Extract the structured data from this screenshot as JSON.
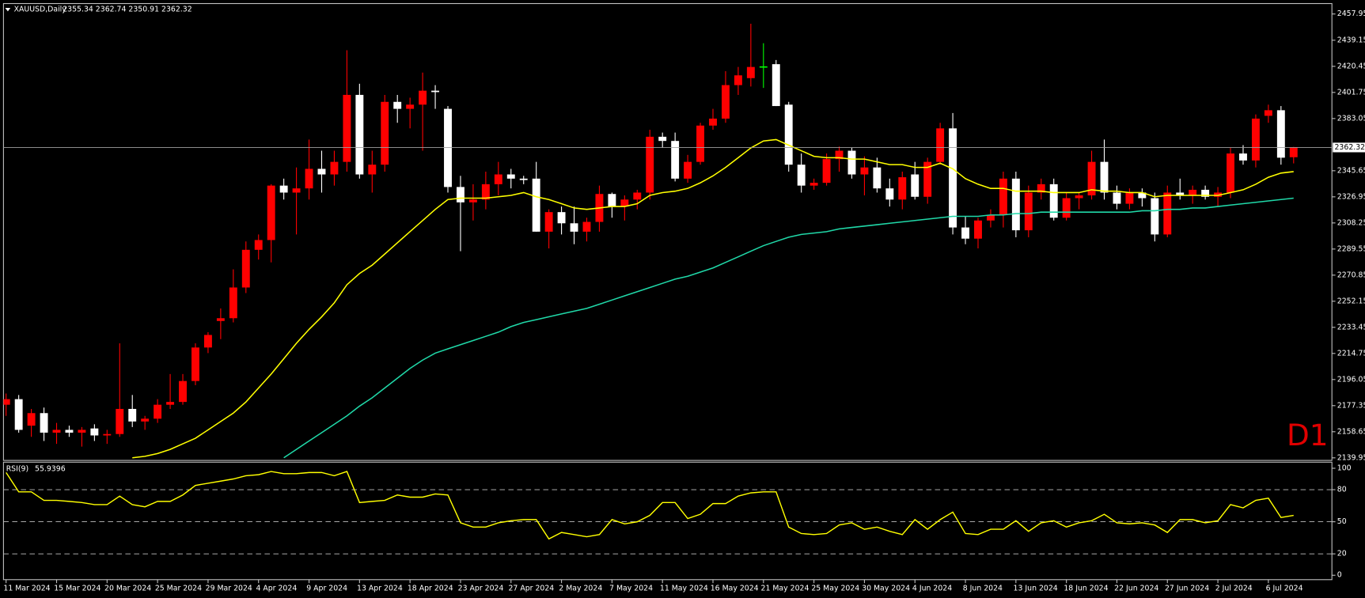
{
  "chart_data": [
    {
      "type": "candlestick",
      "title": "XAUUSD,Daily",
      "subtitle": "2355.34 2362.74 2350.91 2362.32",
      "annotation": "D1",
      "categories": [
        "11 Mar 2024",
        null,
        null,
        null,
        "15 Mar 2024",
        null,
        null,
        null,
        "20 Mar 2024",
        null,
        null,
        null,
        "25 Mar 2024",
        null,
        null,
        null,
        "29 Mar 2024",
        null,
        null,
        null,
        "4 Apr 2024",
        null,
        null,
        null,
        "9 Apr 2024",
        null,
        null,
        null,
        "13 Apr 2024",
        null,
        null,
        null,
        "18 Apr 2024",
        null,
        null,
        null,
        "23 Apr 2024",
        null,
        null,
        null,
        "27 Apr 2024",
        null,
        null,
        null,
        "2 May 2024",
        null,
        null,
        null,
        "7 May 2024",
        null,
        null,
        null,
        "11 May 2024",
        null,
        null,
        null,
        "16 May 2024",
        null,
        null,
        null,
        "21 May 2024",
        null,
        null,
        null,
        "25 May 2024",
        null,
        null,
        null,
        "30 May 2024",
        null,
        null,
        null,
        "4 Jun 2024",
        null,
        null,
        null,
        "8 Jun 2024",
        null,
        null,
        null,
        "13 Jun 2024",
        null,
        null,
        null,
        "18 Jun 2024",
        null,
        null,
        null,
        "22 Jun 2024",
        null,
        null,
        null,
        "27 Jun 2024",
        null,
        null,
        null,
        "2 Jul 2024",
        null,
        null,
        null,
        "6 Jul 2024",
        null,
        null
      ],
      "open": [
        2178,
        2182,
        2163,
        2172,
        2158,
        2160,
        2158,
        2161,
        2156,
        2157,
        2175,
        2166,
        2168,
        2178,
        2180,
        2195,
        2219,
        2238,
        2240,
        2262,
        2289,
        2296,
        2335,
        2330,
        2333,
        2347,
        2343,
        2352,
        2400,
        2343,
        2350,
        2395,
        2390,
        2393,
        2403,
        2390,
        2334,
        2323,
        2325,
        2336,
        2343,
        2340,
        2340,
        2302,
        2316,
        2308,
        2302,
        2309,
        2329,
        2320,
        2325,
        2330,
        2370,
        2367,
        2340,
        2352,
        2378,
        2383,
        2407,
        2412,
        2420,
        2422,
        2393,
        2350,
        2335,
        2337,
        2354,
        2360,
        2343,
        2348,
        2333,
        2325,
        2343,
        2327,
        2352,
        2376,
        2305,
        2297,
        2310,
        2314,
        2340,
        2303,
        2330,
        2336,
        2312,
        2326,
        2328,
        2352,
        2330,
        2322,
        2330,
        2326,
        2300,
        2330,
        2328,
        2332,
        2327,
        2330,
        2358,
        2353,
        2385,
        2389,
        2355.34
      ],
      "high": [
        2186,
        2185,
        2175,
        2176,
        2165,
        2163,
        2162,
        2164,
        2160,
        2222,
        2185,
        2170,
        2182,
        2200,
        2200,
        2222,
        2230,
        2247,
        2275,
        2295,
        2300,
        2336,
        2340,
        2348,
        2368,
        2360,
        2360,
        2432,
        2408,
        2360,
        2400,
        2400,
        2398,
        2416,
        2407,
        2392,
        2342,
        2336,
        2345,
        2352,
        2347,
        2342,
        2352,
        2318,
        2320,
        2320,
        2312,
        2335,
        2330,
        2328,
        2332,
        2375,
        2373,
        2373,
        2357,
        2380,
        2390,
        2417,
        2420,
        2451,
        2437,
        2425,
        2395,
        2358,
        2340,
        2358,
        2363,
        2362,
        2356,
        2355,
        2340,
        2345,
        2352,
        2355,
        2380,
        2387,
        2313,
        2312,
        2318,
        2345,
        2345,
        2335,
        2340,
        2340,
        2330,
        2330,
        2360,
        2368,
        2335,
        2333,
        2333,
        2330,
        2335,
        2340,
        2335,
        2335,
        2334,
        2362,
        2364,
        2386,
        2393,
        2392,
        2362.74
      ],
      "low": [
        2170,
        2158,
        2155,
        2152,
        2150,
        2155,
        2148,
        2152,
        2150,
        2155,
        2162,
        2160,
        2165,
        2175,
        2178,
        2192,
        2215,
        2225,
        2237,
        2258,
        2282,
        2280,
        2325,
        2300,
        2325,
        2330,
        2335,
        2345,
        2340,
        2330,
        2345,
        2380,
        2376,
        2360,
        2390,
        2330,
        2288,
        2310,
        2318,
        2328,
        2333,
        2336,
        2302,
        2290,
        2300,
        2293,
        2295,
        2302,
        2312,
        2310,
        2318,
        2325,
        2362,
        2338,
        2337,
        2350,
        2375,
        2380,
        2400,
        2406,
        2405,
        2392,
        2345,
        2330,
        2332,
        2335,
        2345,
        2340,
        2328,
        2330,
        2320,
        2318,
        2325,
        2322,
        2350,
        2300,
        2293,
        2290,
        2305,
        2305,
        2298,
        2298,
        2325,
        2310,
        2310,
        2318,
        2325,
        2325,
        2318,
        2318,
        2320,
        2295,
        2298,
        2325,
        2322,
        2325,
        2320,
        2326,
        2350,
        2348,
        2380,
        2350,
        2350.91
      ],
      "close": [
        2182,
        2160,
        2172,
        2158,
        2160,
        2158,
        2160,
        2156,
        2157,
        2175,
        2166,
        2168,
        2178,
        2180,
        2195,
        2219,
        2228,
        2240,
        2262,
        2289,
        2296,
        2335,
        2330,
        2333,
        2347,
        2343,
        2352,
        2400,
        2343,
        2350,
        2395,
        2390,
        2393,
        2403,
        2402,
        2334,
        2323,
        2325,
        2336,
        2343,
        2340,
        2339,
        2302,
        2316,
        2308,
        2302,
        2309,
        2329,
        2320,
        2325,
        2330,
        2370,
        2367,
        2340,
        2352,
        2378,
        2383,
        2407,
        2414,
        2420,
        2420,
        2392,
        2350,
        2335,
        2337,
        2354,
        2360,
        2343,
        2348,
        2333,
        2325,
        2341,
        2327,
        2352,
        2376,
        2305,
        2297,
        2310,
        2314,
        2340,
        2303,
        2330,
        2336,
        2312,
        2326,
        2328,
        2352,
        2330,
        2322,
        2330,
        2326,
        2300,
        2330,
        2328,
        2332,
        2327,
        2330,
        2358,
        2353,
        2383,
        2389,
        2355,
        2362.32
      ],
      "up_color": "#ff0000",
      "down_color": "#ffffff",
      "doji_color": "#00ff00",
      "series": [
        {
          "color": "#ffff00",
          "values": [
            null,
            null,
            null,
            null,
            null,
            null,
            null,
            null,
            null,
            null,
            2140,
            2141,
            2143,
            2146,
            2150,
            2154,
            2160,
            2166,
            2172,
            2180,
            2190,
            2200,
            2211,
            2222,
            2232,
            2241,
            2251,
            2264,
            2272,
            2278,
            2286,
            2294,
            2302,
            2310,
            2318,
            2325,
            2326,
            2326,
            2326,
            2327,
            2328,
            2330,
            2327,
            2325,
            2322,
            2319,
            2318,
            2319,
            2320,
            2320,
            2322,
            2328,
            2330,
            2331,
            2333,
            2337,
            2342,
            2348,
            2355,
            2362,
            2367,
            2368,
            2364,
            2360,
            2356,
            2355,
            2355,
            2354,
            2354,
            2352,
            2350,
            2350,
            2348,
            2348,
            2351,
            2347,
            2340,
            2336,
            2333,
            2333,
            2331,
            2331,
            2331,
            2330,
            2330,
            2330,
            2332,
            2331,
            2331,
            2330,
            2330,
            2327,
            2328,
            2328,
            2328,
            2328,
            2328,
            2330,
            2332,
            2336,
            2341,
            2344,
            2345
          ]
        },
        {
          "color": "#20d8a8",
          "values": [
            null,
            null,
            null,
            null,
            null,
            null,
            null,
            null,
            null,
            null,
            null,
            null,
            null,
            null,
            null,
            null,
            null,
            null,
            null,
            null,
            null,
            null,
            2140,
            2146,
            2152,
            2158,
            2164,
            2170,
            2177,
            2183,
            2190,
            2197,
            2204,
            2210,
            2215,
            2218,
            2221,
            2224,
            2227,
            2230,
            2234,
            2237,
            2239,
            2241,
            2243,
            2245,
            2247,
            2250,
            2253,
            2256,
            2259,
            2262,
            2265,
            2268,
            2270,
            2273,
            2276,
            2280,
            2284,
            2288,
            2292,
            2295,
            2298,
            2300,
            2301,
            2302,
            2304,
            2305,
            2306,
            2307,
            2308,
            2309,
            2310,
            2311,
            2312,
            2313,
            2313,
            2313,
            2314,
            2314,
            2315,
            2315,
            2316,
            2316,
            2316,
            2316,
            2316,
            2316,
            2316,
            2316,
            2317,
            2317,
            2318,
            2318,
            2319,
            2319,
            2320,
            2321,
            2322,
            2323,
            2324,
            2325,
            2326
          ]
        }
      ],
      "current_price": 2362.32,
      "ylim": [
        2138.1,
        2464.8
      ],
      "yticks": [
        2457.95,
        2439.15,
        2420.45,
        2401.75,
        2383.05,
        2345.65,
        2326.95,
        2308.25,
        2289.55,
        2270.85,
        2252.15,
        2233.45,
        2214.75,
        2196.05,
        2177.35,
        2158.65,
        2139.95
      ]
    },
    {
      "type": "line",
      "title": "RSI(9)",
      "color": "#ffff00",
      "values": [
        96,
        78,
        78,
        70,
        70,
        69,
        68,
        66,
        66,
        74,
        66,
        64,
        69,
        69,
        75,
        84,
        86,
        88,
        90,
        93,
        94,
        97,
        95,
        95,
        96,
        96,
        93,
        97,
        68,
        69,
        70,
        75,
        73,
        73,
        76,
        75,
        49,
        45,
        45,
        49,
        51,
        52,
        52,
        34,
        40,
        38,
        36,
        38,
        52,
        48,
        50,
        56,
        68,
        68,
        53,
        57,
        67,
        67,
        74,
        77,
        78,
        78,
        45,
        39,
        38,
        39,
        47,
        49,
        43,
        45,
        41,
        38,
        52,
        43,
        52,
        59,
        39,
        38,
        43,
        43,
        51,
        41,
        49,
        51,
        45,
        49,
        51,
        57,
        49,
        48,
        49,
        47,
        40,
        52,
        52,
        49,
        51,
        66,
        63,
        70,
        72,
        54,
        55.9396
      ],
      "ylim": [
        -4.1,
        105.7
      ],
      "yticks": [
        0,
        20,
        50,
        80,
        100
      ]
    }
  ]
}
